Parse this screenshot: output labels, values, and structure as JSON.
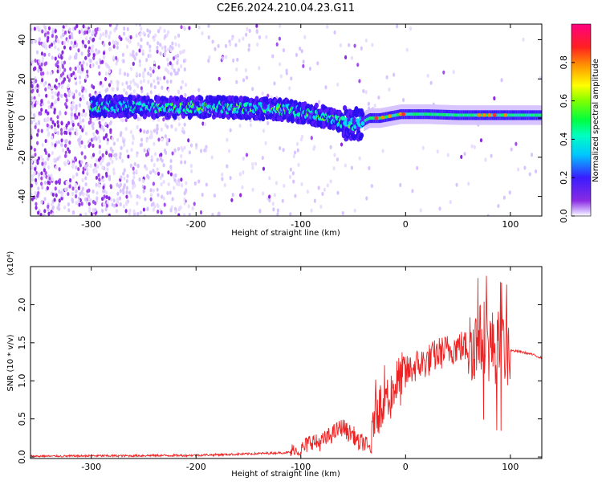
{
  "title": "C2E6.2024.210.04.23.G11",
  "colors": {
    "snr_line": "#ee2222",
    "axis": "#000000",
    "background": "#ffffff"
  },
  "chart_data": [
    {
      "type": "heatmap",
      "xlabel": "Height of straight line (km)",
      "ylabel": "Frequency (Hz)",
      "xlim": [
        -358,
        130
      ],
      "ylim": [
        -50,
        48
      ],
      "xticks": [
        -300,
        -200,
        -100,
        0,
        100
      ],
      "xtick_labels": [
        "-300",
        "-200",
        "-100",
        "0",
        "100"
      ],
      "yticks": [
        -40,
        -20,
        0,
        20,
        40
      ],
      "ytick_labels": [
        "-40",
        "-20",
        "0",
        "20",
        "40"
      ],
      "colorbar": {
        "label": "Normalized spectral amplitude",
        "range": [
          0,
          1
        ],
        "ticks": [
          0.0,
          0.2,
          0.4,
          0.6,
          0.8
        ],
        "tick_labels": [
          "0.0",
          "0.2",
          "0.4",
          "0.6",
          "0.8"
        ],
        "colormap": "rainbow (purple-blue-cyan-green-yellow-orange-red-magenta)"
      },
      "signal_track": {
        "x": [
          -295,
          -270,
          -240,
          -210,
          -180,
          -150,
          -120,
          -100,
          -80,
          -65,
          -55,
          -45,
          -35,
          -25,
          -15,
          -5,
          0,
          20,
          50,
          80,
          100,
          130
        ],
        "freq_hz": [
          6,
          6,
          5.5,
          5.5,
          5.5,
          5,
          4.5,
          3,
          1,
          -1,
          -3,
          -3,
          0,
          0,
          1,
          2,
          2,
          2,
          1.5,
          1.5,
          1.5,
          1.5
        ]
      }
    },
    {
      "type": "line",
      "xlabel": "Height of straight line (km)",
      "ylabel": "SNR (10 * v/v)",
      "y_multiplier": "(x10⁴)",
      "xlim": [
        -358,
        130
      ],
      "ylim": [
        -0.02,
        2.5
      ],
      "xticks": [
        -300,
        -200,
        -100,
        0,
        100
      ],
      "xtick_labels": [
        "-300",
        "-200",
        "-100",
        "0",
        "100"
      ],
      "yticks": [
        0.0,
        0.5,
        1.0,
        1.5,
        2.0
      ],
      "ytick_labels": [
        "0.0",
        "0.5",
        "1.0",
        "1.5",
        "2.0"
      ],
      "series": [
        {
          "color": "#ee2222",
          "x": [
            -358,
            -330,
            -300,
            -270,
            -240,
            -210,
            -180,
            -150,
            -130,
            -110,
            -100,
            -95,
            -90,
            -85,
            -80,
            -75,
            -70,
            -65,
            -60,
            -55,
            -50,
            -45,
            -40,
            -35,
            -32,
            -30,
            -28,
            -25,
            -22,
            -20,
            -18,
            -15,
            -12,
            -10,
            -5,
            0,
            10,
            20,
            30,
            40,
            50,
            60,
            65,
            70,
            72,
            75,
            78,
            80,
            85,
            90,
            95,
            100,
            110,
            120,
            130
          ],
          "y": [
            0.01,
            0.01,
            0.015,
            0.015,
            0.02,
            0.02,
            0.03,
            0.04,
            0.05,
            0.06,
            0.08,
            0.15,
            0.22,
            0.18,
            0.2,
            0.25,
            0.3,
            0.35,
            0.4,
            0.32,
            0.3,
            0.18,
            0.2,
            0.1,
            0.15,
            0.6,
            0.7,
            0.65,
            0.75,
            0.9,
            0.85,
            0.8,
            0.9,
            0.95,
            1.0,
            1.1,
            1.2,
            1.25,
            1.35,
            1.4,
            1.45,
            1.45,
            1.5,
            1.5,
            1.55,
            1.6,
            1.5,
            1.45,
            1.45,
            1.45,
            1.42,
            1.4,
            1.38,
            1.35,
            1.3
          ]
        }
      ]
    }
  ]
}
